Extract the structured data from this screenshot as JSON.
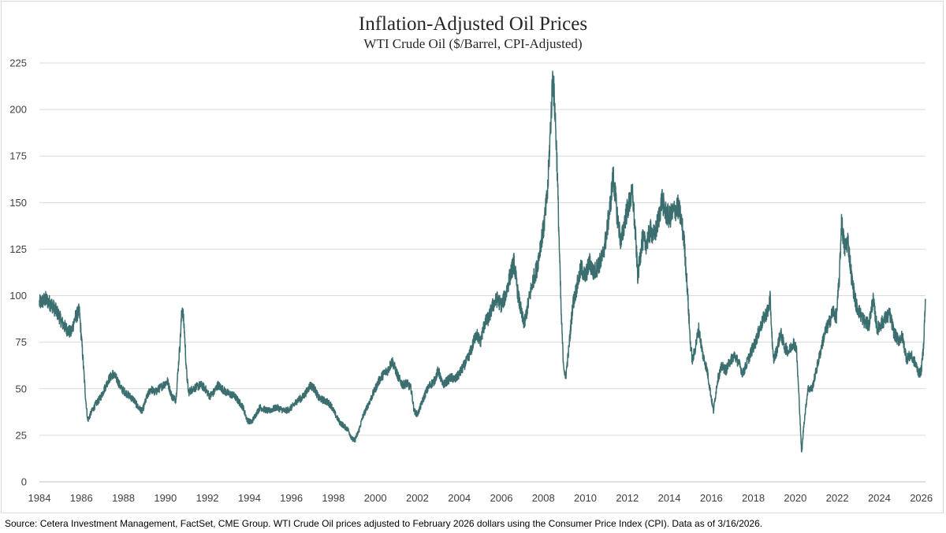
{
  "chart_data": {
    "type": "line",
    "title": "Inflation-Adjusted Oil Prices",
    "subtitle": "WTI Crude Oil ($/Barrel, CPI-Adjusted)",
    "xlabel": "",
    "ylabel": "",
    "xlim": [
      1984,
      2026.2
    ],
    "ylim": [
      0,
      225
    ],
    "y_ticks": [
      0,
      25,
      50,
      75,
      100,
      125,
      150,
      175,
      200,
      225
    ],
    "x_ticks": [
      1984,
      1986,
      1988,
      1990,
      1992,
      1994,
      1996,
      1998,
      2000,
      2002,
      2004,
      2006,
      2008,
      2010,
      2012,
      2014,
      2016,
      2018,
      2020,
      2022,
      2024,
      2026
    ],
    "grid": true,
    "legend": "none",
    "series": [
      {
        "name": "WTI Crude Oil (CPI-Adjusted)",
        "color": "#3b6e6e",
        "points": [
          [
            1984.0,
            96
          ],
          [
            1984.3,
            98
          ],
          [
            1984.6,
            95
          ],
          [
            1984.9,
            90
          ],
          [
            1985.1,
            85
          ],
          [
            1985.3,
            82
          ],
          [
            1985.5,
            80
          ],
          [
            1985.7,
            88
          ],
          [
            1985.9,
            92
          ],
          [
            1986.05,
            70
          ],
          [
            1986.2,
            45
          ],
          [
            1986.3,
            33
          ],
          [
            1986.5,
            38
          ],
          [
            1986.7,
            42
          ],
          [
            1986.9,
            45
          ],
          [
            1987.1,
            50
          ],
          [
            1987.3,
            55
          ],
          [
            1987.5,
            58
          ],
          [
            1987.7,
            55
          ],
          [
            1987.9,
            50
          ],
          [
            1988.1,
            48
          ],
          [
            1988.3,
            46
          ],
          [
            1988.5,
            44
          ],
          [
            1988.7,
            40
          ],
          [
            1988.9,
            38
          ],
          [
            1989.1,
            45
          ],
          [
            1989.3,
            50
          ],
          [
            1989.5,
            48
          ],
          [
            1989.7,
            50
          ],
          [
            1989.9,
            52
          ],
          [
            1990.1,
            54
          ],
          [
            1990.3,
            46
          ],
          [
            1990.5,
            44
          ],
          [
            1990.7,
            75
          ],
          [
            1990.8,
            95
          ],
          [
            1990.9,
            82
          ],
          [
            1991.0,
            60
          ],
          [
            1991.1,
            48
          ],
          [
            1991.3,
            50
          ],
          [
            1991.5,
            51
          ],
          [
            1991.7,
            52
          ],
          [
            1991.9,
            50
          ],
          [
            1992.1,
            46
          ],
          [
            1992.3,
            48
          ],
          [
            1992.5,
            52
          ],
          [
            1992.7,
            50
          ],
          [
            1992.9,
            48
          ],
          [
            1993.1,
            47
          ],
          [
            1993.3,
            46
          ],
          [
            1993.5,
            43
          ],
          [
            1993.7,
            40
          ],
          [
            1993.9,
            33
          ],
          [
            1994.1,
            32
          ],
          [
            1994.3,
            36
          ],
          [
            1994.5,
            40
          ],
          [
            1994.7,
            39
          ],
          [
            1994.9,
            38
          ],
          [
            1995.1,
            39
          ],
          [
            1995.3,
            40
          ],
          [
            1995.5,
            39
          ],
          [
            1995.7,
            38
          ],
          [
            1995.9,
            39
          ],
          [
            1996.1,
            41
          ],
          [
            1996.3,
            44
          ],
          [
            1996.5,
            45
          ],
          [
            1996.7,
            48
          ],
          [
            1996.9,
            52
          ],
          [
            1997.1,
            50
          ],
          [
            1997.3,
            45
          ],
          [
            1997.5,
            44
          ],
          [
            1997.7,
            43
          ],
          [
            1997.9,
            41
          ],
          [
            1998.1,
            36
          ],
          [
            1998.3,
            32
          ],
          [
            1998.5,
            30
          ],
          [
            1998.7,
            28
          ],
          [
            1998.9,
            23
          ],
          [
            1999.0,
            22
          ],
          [
            1999.2,
            27
          ],
          [
            1999.4,
            35
          ],
          [
            1999.6,
            40
          ],
          [
            1999.8,
            45
          ],
          [
            2000.0,
            50
          ],
          [
            2000.2,
            55
          ],
          [
            2000.4,
            58
          ],
          [
            2000.6,
            60
          ],
          [
            2000.8,
            65
          ],
          [
            2000.9,
            62
          ],
          [
            2001.1,
            56
          ],
          [
            2001.3,
            52
          ],
          [
            2001.5,
            53
          ],
          [
            2001.7,
            50
          ],
          [
            2001.85,
            38
          ],
          [
            2002.0,
            36
          ],
          [
            2002.2,
            42
          ],
          [
            2002.4,
            48
          ],
          [
            2002.6,
            52
          ],
          [
            2002.8,
            54
          ],
          [
            2003.0,
            60
          ],
          [
            2003.2,
            52
          ],
          [
            2003.4,
            54
          ],
          [
            2003.6,
            56
          ],
          [
            2003.8,
            55
          ],
          [
            2004.0,
            58
          ],
          [
            2004.2,
            62
          ],
          [
            2004.4,
            66
          ],
          [
            2004.6,
            72
          ],
          [
            2004.8,
            80
          ],
          [
            2005.0,
            75
          ],
          [
            2005.2,
            85
          ],
          [
            2005.4,
            88
          ],
          [
            2005.6,
            95
          ],
          [
            2005.8,
            98
          ],
          [
            2006.0,
            95
          ],
          [
            2006.2,
            100
          ],
          [
            2006.4,
            110
          ],
          [
            2006.6,
            118
          ],
          [
            2006.8,
            100
          ],
          [
            2007.0,
            88
          ],
          [
            2007.1,
            85
          ],
          [
            2007.3,
            97
          ],
          [
            2007.5,
            108
          ],
          [
            2007.7,
            115
          ],
          [
            2007.9,
            130
          ],
          [
            2008.0,
            135
          ],
          [
            2008.1,
            145
          ],
          [
            2008.2,
            155
          ],
          [
            2008.3,
            180
          ],
          [
            2008.45,
            218
          ],
          [
            2008.55,
            200
          ],
          [
            2008.65,
            172
          ],
          [
            2008.75,
            130
          ],
          [
            2008.85,
            90
          ],
          [
            2008.95,
            65
          ],
          [
            2009.05,
            55
          ],
          [
            2009.2,
            70
          ],
          [
            2009.4,
            95
          ],
          [
            2009.6,
            105
          ],
          [
            2009.8,
            115
          ],
          [
            2010.0,
            110
          ],
          [
            2010.2,
            118
          ],
          [
            2010.4,
            112
          ],
          [
            2010.6,
            116
          ],
          [
            2010.8,
            120
          ],
          [
            2011.0,
            132
          ],
          [
            2011.2,
            150
          ],
          [
            2011.33,
            165
          ],
          [
            2011.5,
            145
          ],
          [
            2011.7,
            128
          ],
          [
            2011.9,
            142
          ],
          [
            2012.1,
            150
          ],
          [
            2012.25,
            155
          ],
          [
            2012.4,
            130
          ],
          [
            2012.5,
            110
          ],
          [
            2012.7,
            130
          ],
          [
            2012.9,
            128
          ],
          [
            2013.1,
            135
          ],
          [
            2013.3,
            132
          ],
          [
            2013.5,
            142
          ],
          [
            2013.65,
            152
          ],
          [
            2013.8,
            145
          ],
          [
            2014.0,
            142
          ],
          [
            2014.2,
            145
          ],
          [
            2014.4,
            148
          ],
          [
            2014.55,
            142
          ],
          [
            2014.7,
            130
          ],
          [
            2014.85,
            105
          ],
          [
            2015.0,
            75
          ],
          [
            2015.1,
            65
          ],
          [
            2015.2,
            70
          ],
          [
            2015.4,
            82
          ],
          [
            2015.6,
            68
          ],
          [
            2015.8,
            60
          ],
          [
            2016.0,
            45
          ],
          [
            2016.1,
            38
          ],
          [
            2016.3,
            55
          ],
          [
            2016.5,
            62
          ],
          [
            2016.7,
            60
          ],
          [
            2016.9,
            65
          ],
          [
            2017.1,
            68
          ],
          [
            2017.3,
            64
          ],
          [
            2017.5,
            58
          ],
          [
            2017.7,
            64
          ],
          [
            2017.9,
            70
          ],
          [
            2018.1,
            75
          ],
          [
            2018.3,
            82
          ],
          [
            2018.5,
            88
          ],
          [
            2018.7,
            92
          ],
          [
            2018.8,
            98
          ],
          [
            2018.95,
            65
          ],
          [
            2019.1,
            70
          ],
          [
            2019.3,
            80
          ],
          [
            2019.5,
            72
          ],
          [
            2019.7,
            70
          ],
          [
            2019.9,
            75
          ],
          [
            2020.05,
            72
          ],
          [
            2020.2,
            40
          ],
          [
            2020.3,
            15
          ],
          [
            2020.4,
            30
          ],
          [
            2020.6,
            50
          ],
          [
            2020.8,
            50
          ],
          [
            2021.0,
            60
          ],
          [
            2021.2,
            70
          ],
          [
            2021.4,
            80
          ],
          [
            2021.6,
            85
          ],
          [
            2021.8,
            92
          ],
          [
            2021.95,
            88
          ],
          [
            2022.1,
            110
          ],
          [
            2022.2,
            140
          ],
          [
            2022.35,
            125
          ],
          [
            2022.5,
            130
          ],
          [
            2022.7,
            108
          ],
          [
            2022.9,
            95
          ],
          [
            2023.1,
            90
          ],
          [
            2023.3,
            86
          ],
          [
            2023.5,
            84
          ],
          [
            2023.7,
            98
          ],
          [
            2023.9,
            82
          ],
          [
            2024.1,
            85
          ],
          [
            2024.3,
            88
          ],
          [
            2024.5,
            90
          ],
          [
            2024.7,
            80
          ],
          [
            2024.9,
            76
          ],
          [
            2025.1,
            78
          ],
          [
            2025.3,
            66
          ],
          [
            2025.5,
            68
          ],
          [
            2025.7,
            64
          ],
          [
            2025.9,
            58
          ],
          [
            2026.0,
            60
          ],
          [
            2026.1,
            72
          ],
          [
            2026.2,
            98
          ]
        ]
      }
    ]
  },
  "footer": {
    "source": "Source: Cetera Investment Management, FactSet, CME Group. WTI Crude Oil prices adjusted to February 2026 dollars using the Consumer Price Index (CPI). Data as of 3/16/2026."
  }
}
